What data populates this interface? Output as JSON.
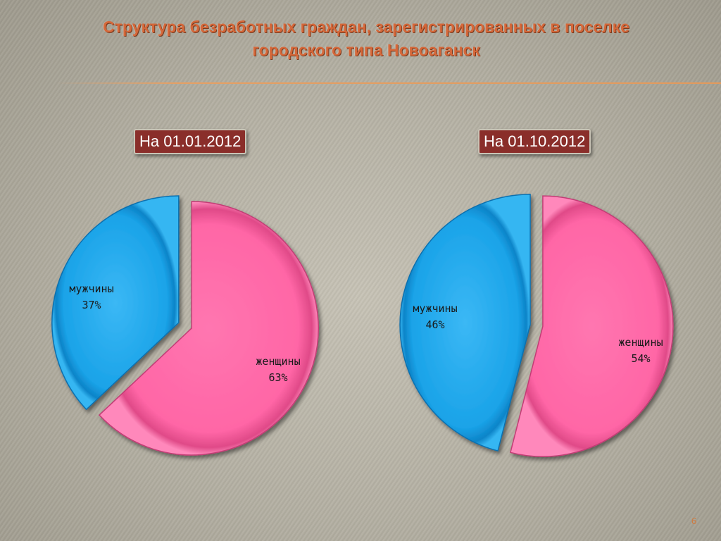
{
  "title_line1": "Структура безработных граждан, зарегистрированных в поселке",
  "title_line2": "городского типа Новоаганск",
  "page_number": "6",
  "colors": {
    "men": "#1aa3e8",
    "women": "#ff66a6",
    "label_box": "#8a2e2a",
    "title": "#d5683a"
  },
  "chart_data": [
    {
      "type": "pie",
      "title": "На 01.01.2012",
      "slices": [
        {
          "name": "мужчины",
          "value": 37,
          "label": "37%"
        },
        {
          "name": "женщины",
          "value": 63,
          "label": "63%"
        }
      ]
    },
    {
      "type": "pie",
      "title": "На 01.10.2012",
      "slices": [
        {
          "name": "мужчины",
          "value": 46,
          "label": "46%"
        },
        {
          "name": "женщины",
          "value": 54,
          "label": "54%"
        }
      ]
    }
  ]
}
